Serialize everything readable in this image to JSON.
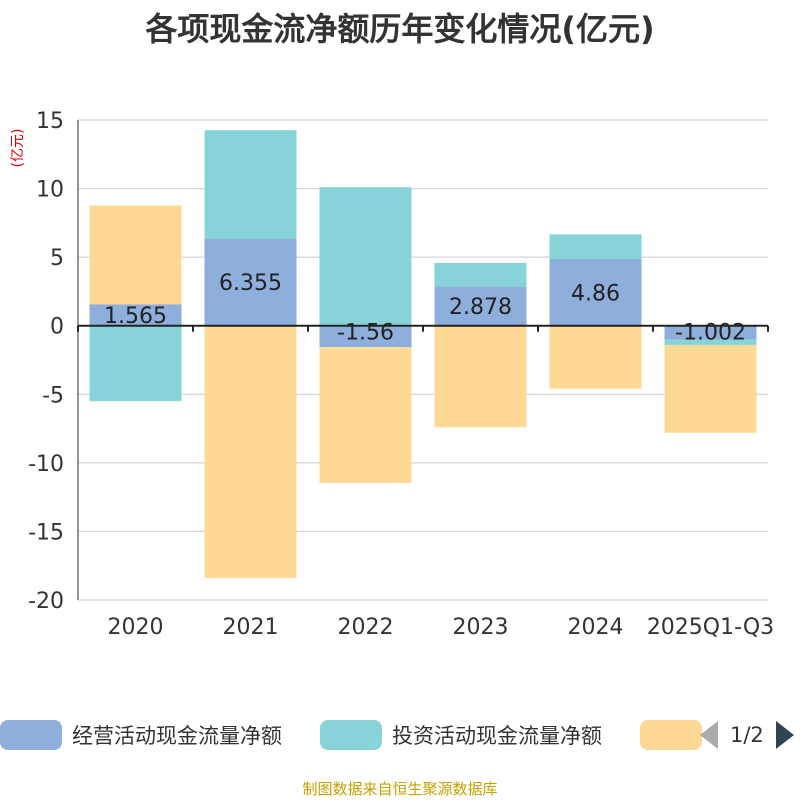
{
  "title": "各项现金流净额历年变化情况(亿元)",
  "source": "制图数据来自恒生聚源数据库",
  "pager": {
    "text": "1/2"
  },
  "chart_data": {
    "type": "bar",
    "stacked": true,
    "title": "各项现金流净额历年变化情况(亿元)",
    "ylabel": "(亿元)",
    "xlabel": "",
    "ylim": [
      -20,
      15
    ],
    "yticks": [
      15,
      10,
      5,
      0,
      -5,
      -10,
      -15,
      -20
    ],
    "grid": true,
    "legend_position": "bottom",
    "categories": [
      "2020",
      "2021",
      "2022",
      "2023",
      "2024",
      "2025Q1-Q3"
    ],
    "series": [
      {
        "name": "经营活动现金流量净额",
        "color": "#8eaedc",
        "values": [
          1.565,
          6.355,
          -1.56,
          2.878,
          4.86,
          -1.002
        ],
        "show_labels": true
      },
      {
        "name": "投资活动现金流量净额",
        "color": "#86d4d8",
        "values": [
          -5.5,
          7.9,
          10.1,
          1.7,
          1.8,
          -0.4
        ],
        "show_labels": false
      },
      {
        "name": "",
        "color": "#fed895",
        "values": [
          7.2,
          -18.4,
          -9.9,
          -7.4,
          -4.6,
          -6.4
        ],
        "show_labels": false
      }
    ]
  }
}
